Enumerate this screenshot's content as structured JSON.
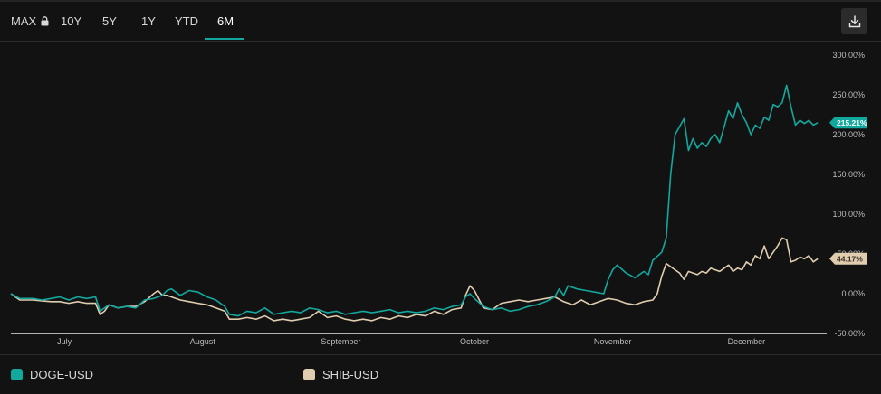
{
  "toolbar": {
    "ranges": [
      {
        "label": "MAX",
        "locked": true,
        "active": false
      },
      {
        "label": "10Y",
        "active": false
      },
      {
        "label": "5Y",
        "active": false
      },
      {
        "label": "1Y",
        "active": false
      },
      {
        "label": "YTD",
        "active": false
      },
      {
        "label": "6M",
        "active": true
      }
    ],
    "download_icon": "download-icon",
    "lock_icon": "lock-icon"
  },
  "colors": {
    "background": "#121212",
    "accent": "#13a89e",
    "doge": "#13a89e",
    "shib": "#e0cdb0",
    "axis_text": "#bdbdbd"
  },
  "legend": {
    "items": [
      {
        "label": "DOGE-USD",
        "color": "#13a89e"
      },
      {
        "label": "SHIB-USD",
        "color": "#e0cdb0"
      }
    ]
  },
  "chart_data": {
    "type": "line",
    "x_unit": "days since June 19",
    "ylim": [
      -50,
      300
    ],
    "y_ticks": [
      300,
      250,
      200,
      150,
      100,
      50,
      0,
      -50
    ],
    "y_tick_labels": [
      "300.00%",
      "250.00%",
      "200.00%",
      "150.00%",
      "100.00%",
      "50.00%",
      "0.00%",
      "-50.00%"
    ],
    "x_ticks": [
      {
        "x": 12,
        "label": "July"
      },
      {
        "x": 43,
        "label": "August"
      },
      {
        "x": 74,
        "label": "September"
      },
      {
        "x": 104,
        "label": "October"
      },
      {
        "x": 135,
        "label": "November"
      },
      {
        "x": 165,
        "label": "December"
      }
    ],
    "x_range": [
      0,
      183
    ],
    "series": [
      {
        "name": "DOGE-USD",
        "color": "#13a89e",
        "last_label": "215.21%",
        "points": [
          [
            0,
            0
          ],
          [
            2,
            -6
          ],
          [
            5,
            -6
          ],
          [
            7,
            -8
          ],
          [
            9,
            -6
          ],
          [
            11,
            -4
          ],
          [
            13,
            -8
          ],
          [
            15,
            -4
          ],
          [
            17,
            -6
          ],
          [
            19,
            -4
          ],
          [
            20,
            -22
          ],
          [
            21,
            -18
          ],
          [
            22,
            -14
          ],
          [
            24,
            -18
          ],
          [
            26,
            -16
          ],
          [
            28,
            -18
          ],
          [
            30,
            -8
          ],
          [
            32,
            -6
          ],
          [
            34,
            -2
          ],
          [
            35,
            4
          ],
          [
            36,
            6
          ],
          [
            37,
            2
          ],
          [
            38,
            -2
          ],
          [
            40,
            4
          ],
          [
            42,
            2
          ],
          [
            44,
            -4
          ],
          [
            46,
            -8
          ],
          [
            48,
            -16
          ],
          [
            49,
            -26
          ],
          [
            51,
            -28
          ],
          [
            53,
            -22
          ],
          [
            55,
            -24
          ],
          [
            57,
            -18
          ],
          [
            59,
            -26
          ],
          [
            61,
            -24
          ],
          [
            63,
            -22
          ],
          [
            65,
            -24
          ],
          [
            67,
            -18
          ],
          [
            69,
            -20
          ],
          [
            71,
            -24
          ],
          [
            73,
            -22
          ],
          [
            75,
            -26
          ],
          [
            77,
            -24
          ],
          [
            79,
            -22
          ],
          [
            81,
            -24
          ],
          [
            83,
            -22
          ],
          [
            85,
            -20
          ],
          [
            87,
            -24
          ],
          [
            89,
            -22
          ],
          [
            91,
            -24
          ],
          [
            93,
            -22
          ],
          [
            95,
            -18
          ],
          [
            97,
            -20
          ],
          [
            99,
            -16
          ],
          [
            101,
            -14
          ],
          [
            102,
            -4
          ],
          [
            103,
            0
          ],
          [
            104,
            -6
          ],
          [
            106,
            -16
          ],
          [
            108,
            -20
          ],
          [
            110,
            -18
          ],
          [
            112,
            -22
          ],
          [
            114,
            -20
          ],
          [
            116,
            -16
          ],
          [
            118,
            -14
          ],
          [
            120,
            -10
          ],
          [
            122,
            -4
          ],
          [
            123,
            6
          ],
          [
            124,
            -2
          ],
          [
            125,
            10
          ],
          [
            127,
            6
          ],
          [
            129,
            4
          ],
          [
            131,
            2
          ],
          [
            133,
            0
          ],
          [
            134,
            18
          ],
          [
            135,
            30
          ],
          [
            136,
            36
          ],
          [
            138,
            26
          ],
          [
            140,
            20
          ],
          [
            142,
            28
          ],
          [
            143,
            24
          ],
          [
            144,
            42
          ],
          [
            146,
            52
          ],
          [
            147,
            70
          ],
          [
            148,
            150
          ],
          [
            149,
            200
          ],
          [
            150,
            210
          ],
          [
            151,
            220
          ],
          [
            152,
            180
          ],
          [
            153,
            195
          ],
          [
            154,
            183
          ],
          [
            155,
            190
          ],
          [
            156,
            185
          ],
          [
            157,
            195
          ],
          [
            158,
            200
          ],
          [
            159,
            190
          ],
          [
            160,
            210
          ],
          [
            161,
            230
          ],
          [
            162,
            220
          ],
          [
            163,
            240
          ],
          [
            164,
            225
          ],
          [
            165,
            215
          ],
          [
            166,
            200
          ],
          [
            167,
            212
          ],
          [
            168,
            208
          ],
          [
            169,
            222
          ],
          [
            170,
            218
          ],
          [
            171,
            238
          ],
          [
            172,
            235
          ],
          [
            173,
            240
          ],
          [
            174,
            262
          ],
          [
            175,
            235
          ],
          [
            176,
            212
          ],
          [
            177,
            218
          ],
          [
            178,
            214
          ],
          [
            179,
            218
          ],
          [
            180,
            212
          ],
          [
            181,
            215
          ]
        ]
      },
      {
        "name": "SHIB-USD",
        "color": "#e0cdb0",
        "last_label": "44.17%",
        "points": [
          [
            0,
            0
          ],
          [
            2,
            -8
          ],
          [
            5,
            -8
          ],
          [
            7,
            -9
          ],
          [
            9,
            -10
          ],
          [
            11,
            -10
          ],
          [
            13,
            -12
          ],
          [
            15,
            -10
          ],
          [
            17,
            -12
          ],
          [
            19,
            -12
          ],
          [
            20,
            -26
          ],
          [
            21,
            -22
          ],
          [
            22,
            -14
          ],
          [
            24,
            -18
          ],
          [
            26,
            -16
          ],
          [
            28,
            -16
          ],
          [
            30,
            -10
          ],
          [
            32,
            0
          ],
          [
            33,
            4
          ],
          [
            34,
            -2
          ],
          [
            35,
            -2
          ],
          [
            36,
            -4
          ],
          [
            38,
            -8
          ],
          [
            40,
            -10
          ],
          [
            42,
            -12
          ],
          [
            44,
            -14
          ],
          [
            46,
            -18
          ],
          [
            48,
            -22
          ],
          [
            49,
            -32
          ],
          [
            51,
            -32
          ],
          [
            53,
            -30
          ],
          [
            55,
            -32
          ],
          [
            57,
            -28
          ],
          [
            59,
            -34
          ],
          [
            61,
            -32
          ],
          [
            63,
            -34
          ],
          [
            65,
            -32
          ],
          [
            67,
            -30
          ],
          [
            69,
            -22
          ],
          [
            71,
            -30
          ],
          [
            73,
            -28
          ],
          [
            75,
            -32
          ],
          [
            77,
            -34
          ],
          [
            79,
            -32
          ],
          [
            81,
            -34
          ],
          [
            83,
            -30
          ],
          [
            85,
            -32
          ],
          [
            87,
            -28
          ],
          [
            89,
            -30
          ],
          [
            91,
            -26
          ],
          [
            93,
            -28
          ],
          [
            95,
            -22
          ],
          [
            97,
            -26
          ],
          [
            99,
            -20
          ],
          [
            101,
            -18
          ],
          [
            102,
            -2
          ],
          [
            103,
            10
          ],
          [
            104,
            4
          ],
          [
            106,
            -18
          ],
          [
            108,
            -20
          ],
          [
            110,
            -12
          ],
          [
            112,
            -10
          ],
          [
            114,
            -8
          ],
          [
            116,
            -10
          ],
          [
            118,
            -8
          ],
          [
            120,
            -6
          ],
          [
            122,
            -4
          ],
          [
            124,
            -10
          ],
          [
            126,
            -14
          ],
          [
            128,
            -8
          ],
          [
            130,
            -14
          ],
          [
            132,
            -10
          ],
          [
            134,
            -6
          ],
          [
            136,
            -8
          ],
          [
            138,
            -12
          ],
          [
            140,
            -14
          ],
          [
            142,
            -10
          ],
          [
            144,
            -8
          ],
          [
            145,
            0
          ],
          [
            146,
            22
          ],
          [
            147,
            38
          ],
          [
            148,
            34
          ],
          [
            149,
            30
          ],
          [
            150,
            26
          ],
          [
            151,
            18
          ],
          [
            152,
            28
          ],
          [
            153,
            26
          ],
          [
            154,
            24
          ],
          [
            155,
            28
          ],
          [
            156,
            26
          ],
          [
            157,
            32
          ],
          [
            158,
            30
          ],
          [
            159,
            28
          ],
          [
            160,
            32
          ],
          [
            161,
            36
          ],
          [
            162,
            28
          ],
          [
            163,
            32
          ],
          [
            164,
            30
          ],
          [
            165,
            40
          ],
          [
            166,
            36
          ],
          [
            167,
            48
          ],
          [
            168,
            44
          ],
          [
            169,
            60
          ],
          [
            170,
            44
          ],
          [
            171,
            52
          ],
          [
            172,
            60
          ],
          [
            173,
            70
          ],
          [
            174,
            68
          ],
          [
            175,
            40
          ],
          [
            176,
            42
          ],
          [
            177,
            46
          ],
          [
            178,
            44
          ],
          [
            179,
            48
          ],
          [
            180,
            40
          ],
          [
            181,
            44
          ]
        ]
      }
    ]
  }
}
